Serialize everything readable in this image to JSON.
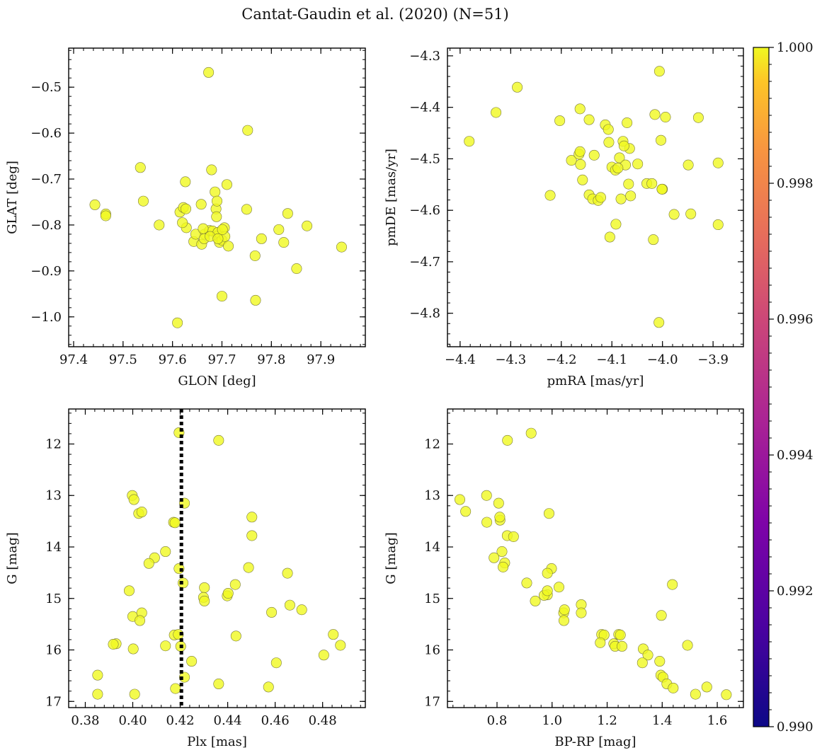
{
  "figure": {
    "title": "Cantat-Gaudin et al. (2020) (N=51)"
  },
  "colorbar": {
    "colormap": "plasma",
    "min": 0.99,
    "max": 1.0,
    "tick_labels": [
      "0.990",
      "0.992",
      "0.994",
      "0.996",
      "0.998",
      "1.000"
    ],
    "point_color": "#f0f921"
  },
  "chart_data": [
    {
      "type": "scatter",
      "name": "position",
      "xlabel": "GLON [deg]",
      "ylabel": "GLAT [deg]",
      "xlim": [
        97.39,
        97.99
      ],
      "ylim": [
        -1.065,
        -0.415
      ],
      "xticks": [
        97.4,
        97.5,
        97.6,
        97.7,
        97.8,
        97.9
      ],
      "xtick_labels": [
        "97.4",
        "97.5",
        "97.6",
        "97.7",
        "97.8",
        "97.9"
      ],
      "yticks": [
        -1.0,
        -0.9,
        -0.8,
        -0.7,
        -0.6,
        -0.5
      ],
      "ytick_labels": [
        "−1.0",
        "−0.9",
        "−0.8",
        "−0.7",
        "−0.6",
        "−0.5"
      ],
      "x": [
        97.673,
        97.752,
        97.535,
        97.626,
        97.541,
        97.443,
        97.465,
        97.465,
        97.573,
        97.615,
        97.622,
        97.627,
        97.628,
        97.643,
        97.658,
        97.659,
        97.665,
        97.675,
        97.679,
        97.681,
        97.686,
        97.688,
        97.689,
        97.69,
        97.691,
        97.692,
        97.695,
        97.7,
        97.705,
        97.706,
        97.71,
        97.713,
        97.75,
        97.767,
        97.78,
        97.815,
        97.825,
        97.833,
        97.851,
        97.872,
        97.942,
        97.61,
        97.7,
        97.768,
        97.62,
        97.647,
        97.662,
        97.664,
        97.676,
        97.692,
        97.701
      ],
      "y": [
        -0.468,
        -0.594,
        -0.675,
        -0.706,
        -0.748,
        -0.756,
        -0.776,
        -0.78,
        -0.8,
        -0.772,
        -0.762,
        -0.765,
        -0.806,
        -0.836,
        -0.755,
        -0.842,
        -0.82,
        -0.812,
        -0.68,
        -0.813,
        -0.728,
        -0.765,
        -0.782,
        -0.748,
        -0.824,
        -0.816,
        -0.838,
        -0.833,
        -0.806,
        -0.825,
        -0.712,
        -0.846,
        -0.766,
        -0.867,
        -0.83,
        -0.81,
        -0.838,
        -0.775,
        -0.895,
        -0.802,
        -0.848,
        -1.013,
        -0.955,
        -0.964,
        -0.795,
        -0.82,
        -0.808,
        -0.83,
        -0.825,
        -0.83,
        -0.81
      ]
    },
    {
      "type": "scatter",
      "name": "proper-motion",
      "xlabel": "pmRA [mas/yr]",
      "ylabel": "pmDE [mas/yr]",
      "xlim": [
        -4.425,
        -3.84
      ],
      "ylim": [
        -4.865,
        -4.285
      ],
      "xticks": [
        -4.4,
        -4.3,
        -4.2,
        -4.1,
        -4.0,
        -3.9
      ],
      "xtick_labels": [
        "−4.4",
        "−4.3",
        "−4.2",
        "−4.1",
        "−4.0",
        "−3.9"
      ],
      "yticks": [
        -4.8,
        -4.7,
        -4.6,
        -4.5,
        -4.4,
        -4.3
      ],
      "ytick_labels": [
        "−4.8",
        "−4.7",
        "−4.6",
        "−4.5",
        "−4.4",
        "−4.3"
      ],
      "x": [
        -4.006,
        -4.287,
        -4.329,
        -4.382,
        -4.203,
        -4.222,
        -4.163,
        -4.18,
        -4.165,
        -4.162,
        -4.158,
        -4.145,
        -4.145,
        -4.138,
        -4.135,
        -4.127,
        -4.122,
        -4.113,
        -4.107,
        -4.106,
        -4.104,
        -4.1,
        -4.093,
        -4.092,
        -4.085,
        -4.082,
        -4.078,
        -4.073,
        -4.07,
        -4.067,
        -4.065,
        -4.063,
        -4.049,
        -4.031,
        -4.021,
        -4.018,
        -4.015,
        -4.007,
        -4.003,
        -4.0,
        -3.994,
        -3.977,
        -3.949,
        -3.944,
        -3.929,
        -3.89,
        -3.89,
        -4.076,
        -4.088,
        -4.001,
        -4.163
      ],
      "y": [
        -4.33,
        -4.361,
        -4.41,
        -4.466,
        -4.426,
        -4.571,
        -4.403,
        -4.503,
        -4.491,
        -4.511,
        -4.541,
        -4.424,
        -4.57,
        -4.578,
        -4.493,
        -4.581,
        -4.575,
        -4.434,
        -4.443,
        -4.468,
        -4.652,
        -4.516,
        -4.522,
        -4.627,
        -4.498,
        -4.578,
        -4.466,
        -4.512,
        -4.43,
        -4.549,
        -4.48,
        -4.572,
        -4.51,
        -4.548,
        -4.548,
        -4.657,
        -4.414,
        -4.818,
        -4.464,
        -4.559,
        -4.419,
        -4.608,
        -4.512,
        -4.607,
        -4.42,
        -4.508,
        -4.628,
        -4.475,
        -4.518,
        -4.559,
        -4.486
      ]
    },
    {
      "type": "scatter",
      "name": "parallax-magnitude",
      "xlabel": "Plx [mas]",
      "ylabel": "G [mag]",
      "xlim": [
        0.373,
        0.498
      ],
      "ylim": [
        17.12,
        11.32
      ],
      "xticks": [
        0.38,
        0.4,
        0.42,
        0.44,
        0.46,
        0.48
      ],
      "xtick_labels": [
        "0.38",
        "0.40",
        "0.42",
        "0.44",
        "0.46",
        "0.48"
      ],
      "yticks": [
        12,
        13,
        14,
        15,
        16,
        17
      ],
      "ytick_labels": [
        "12",
        "13",
        "14",
        "15",
        "16",
        "17"
      ],
      "vline": {
        "x": 0.4205,
        "style": "dotted"
      },
      "x": [
        0.4195,
        0.4362,
        0.3998,
        0.4005,
        0.4025,
        0.4038,
        0.4218,
        0.4172,
        0.4178,
        0.4502,
        0.4502,
        0.4138,
        0.4092,
        0.4068,
        0.4195,
        0.4212,
        0.4488,
        0.4652,
        0.4432,
        0.4302,
        0.4298,
        0.4302,
        0.4398,
        0.4402,
        0.3985,
        0.4,
        0.4038,
        0.403,
        0.4662,
        0.4712,
        0.4585,
        0.4175,
        0.4192,
        0.4845,
        0.4435,
        0.393,
        0.3918,
        0.4138,
        0.4202,
        0.4002,
        0.4875,
        0.4805,
        0.3852,
        0.4218,
        0.4248,
        0.4605,
        0.4362,
        0.4572,
        0.418,
        0.3852,
        0.4008
      ],
      "y": [
        11.78,
        11.93,
        13.0,
        13.08,
        13.35,
        13.32,
        13.15,
        13.52,
        13.53,
        13.42,
        13.78,
        14.09,
        14.21,
        14.32,
        14.42,
        14.7,
        14.4,
        14.51,
        14.73,
        14.79,
        14.98,
        15.05,
        14.95,
        14.9,
        14.85,
        15.35,
        15.28,
        15.43,
        15.13,
        15.22,
        15.27,
        15.71,
        15.7,
        15.7,
        15.73,
        15.88,
        15.89,
        15.92,
        15.93,
        15.98,
        15.91,
        16.1,
        16.49,
        16.53,
        16.22,
        16.25,
        16.66,
        16.72,
        16.75,
        16.86,
        16.86
      ]
    },
    {
      "type": "scatter",
      "name": "color-magnitude",
      "xlabel": "BP-RP [mag]",
      "ylabel": "G [mag]",
      "xlim": [
        0.62,
        1.695
      ],
      "ylim": [
        17.12,
        11.32
      ],
      "xticks": [
        0.8,
        1.0,
        1.2,
        1.4,
        1.6
      ],
      "xtick_labels": [
        "0.8",
        "1.0",
        "1.2",
        "1.4",
        "1.6"
      ],
      "yticks": [
        12,
        13,
        14,
        15,
        16,
        17
      ],
      "ytick_labels": [
        "12",
        "13",
        "14",
        "15",
        "16",
        "17"
      ],
      "x": [
        0.924,
        0.838,
        0.665,
        0.686,
        0.762,
        0.811,
        0.989,
        0.806,
        0.763,
        0.837,
        0.818,
        0.789,
        0.828,
        0.822,
        0.998,
        0.983,
        1.437,
        0.908,
        1.025,
        0.983,
        0.971,
        0.939,
        0.983,
        1.106,
        1.042,
        1.045,
        1.106,
        1.043,
        1.397,
        1.18,
        1.189,
        1.242,
        1.248,
        1.175,
        1.224,
        1.229,
        1.254,
        1.331,
        1.492,
        1.348,
        1.328,
        1.391,
        1.395,
        1.403,
        1.417,
        1.44,
        1.562,
        1.521,
        1.633,
        0.81,
        0.86
      ],
      "y": [
        11.79,
        11.93,
        13.08,
        13.31,
        13.0,
        13.48,
        13.35,
        13.15,
        13.52,
        13.78,
        14.09,
        14.21,
        14.31,
        14.39,
        14.42,
        14.51,
        14.73,
        14.7,
        14.78,
        14.93,
        14.94,
        15.05,
        14.85,
        15.12,
        15.28,
        15.22,
        15.28,
        15.43,
        15.33,
        15.7,
        15.71,
        15.7,
        15.71,
        15.86,
        15.88,
        15.93,
        15.93,
        15.98,
        15.91,
        16.1,
        16.25,
        16.22,
        16.49,
        16.53,
        16.66,
        16.74,
        16.72,
        16.86,
        16.87,
        13.42,
        13.8
      ]
    }
  ]
}
